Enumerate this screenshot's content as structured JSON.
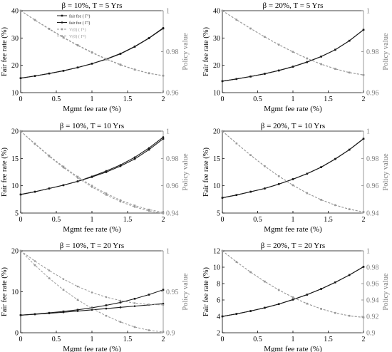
{
  "figure": {
    "common": {
      "xlabel": "Mgmt fee rate (%)",
      "ylabel_left": "Fair fee rate (%)",
      "ylabel_right": "Policy value",
      "x_ticks": [
        "0",
        "0.5",
        "1",
        "1.5",
        "2"
      ],
      "xlim": [
        0,
        2
      ]
    },
    "colors": {
      "fair_fee": "#1a1a1a",
      "policy_value": "#999999",
      "axes": "#000000",
      "right_axis_text": "#808080"
    }
  },
  "chart_data": [
    {
      "type": "line",
      "title": "β = 10%, T = 5 Yrs",
      "xlabel": "Mgmt fee rate (%)",
      "ylabel": "Fair fee rate (%)",
      "ylabel_right": "Policy value",
      "ylim": [
        10,
        40
      ],
      "ylim_right": [
        0.96,
        1.0
      ],
      "yticks": [
        "10",
        "20",
        "30",
        "40"
      ],
      "yticks_right": [
        "0.96",
        "0.98",
        "1"
      ],
      "legend": {
        "position": "top-left",
        "entries": [
          "fair fee (  Γ¹)",
          "fair fee (  Γ²)",
          "V(0) (  Γ¹)",
          "V(0) (  Γ²)"
        ]
      },
      "x": [
        0,
        0.2,
        0.4,
        0.6,
        0.8,
        1.0,
        1.2,
        1.4,
        1.6,
        1.8,
        2.0
      ],
      "series": [
        {
          "name": "fair fee (  Γ¹)",
          "axis": "left",
          "values": [
            15.3,
            16.1,
            17.0,
            18.0,
            19.2,
            20.6,
            22.2,
            24.2,
            26.8,
            29.9,
            33.5
          ]
        },
        {
          "name": "fair fee (  Γ²)",
          "axis": "left",
          "values": [
            15.3,
            16.1,
            17.0,
            18.0,
            19.2,
            20.6,
            22.3,
            24.3,
            26.9,
            30.0,
            33.7
          ]
        },
        {
          "name": "V(0) (  Γ¹)",
          "axis": "right",
          "values": [
            1.0,
            0.9955,
            0.9912,
            0.987,
            0.9832,
            0.9797,
            0.9765,
            0.9737,
            0.9713,
            0.9695,
            0.9683
          ]
        },
        {
          "name": "V(0) (  Γ²)",
          "axis": "right",
          "values": [
            1.0,
            0.9954,
            0.991,
            0.9868,
            0.983,
            0.9795,
            0.9763,
            0.9735,
            0.9712,
            0.9694,
            0.9682
          ]
        }
      ]
    },
    {
      "type": "line",
      "title": "β = 20%, T = 5 Yrs",
      "xlabel": "Mgmt fee rate (%)",
      "ylabel": "Fair fee rate (%)",
      "ylabel_right": "Policy value",
      "ylim": [
        10,
        40
      ],
      "ylim_right": [
        0.96,
        1.0
      ],
      "yticks": [
        "10",
        "20",
        "30",
        "40"
      ],
      "yticks_right": [
        "0.96",
        "0.98",
        "1"
      ],
      "x": [
        0,
        0.2,
        0.4,
        0.6,
        0.8,
        1.0,
        1.2,
        1.4,
        1.6,
        1.8,
        2.0
      ],
      "series": [
        {
          "values": [
            14.2,
            15.0,
            15.9,
            16.9,
            18.1,
            19.5,
            21.2,
            23.2,
            25.7,
            29.0,
            33.0
          ],
          "axis": "left"
        },
        {
          "values": [
            14.2,
            15.0,
            15.9,
            16.9,
            18.1,
            19.5,
            21.2,
            23.2,
            25.7,
            29.0,
            33.0
          ],
          "axis": "left"
        },
        {
          "values": [
            1.0,
            0.9956,
            0.9913,
            0.9872,
            0.9834,
            0.9799,
            0.9767,
            0.9739,
            0.9716,
            0.9698,
            0.9686
          ],
          "axis": "right"
        },
        {
          "values": [
            1.0,
            0.9956,
            0.9913,
            0.9872,
            0.9834,
            0.9799,
            0.9767,
            0.9739,
            0.9716,
            0.9698,
            0.9686
          ],
          "axis": "right"
        }
      ]
    },
    {
      "type": "line",
      "title": "β = 10%, T = 10 Yrs",
      "xlabel": "Mgmt fee rate (%)",
      "ylabel": "Fair fee rate (%)",
      "ylabel_right": "Policy value",
      "ylim": [
        5,
        20
      ],
      "ylim_right": [
        0.94,
        1.0
      ],
      "yticks": [
        "5",
        "10",
        "15",
        "20"
      ],
      "yticks_right": [
        "0.94",
        "0.96",
        "0.98",
        "1"
      ],
      "x": [
        0,
        0.2,
        0.4,
        0.6,
        0.8,
        1.0,
        1.2,
        1.4,
        1.6,
        1.8,
        2.0
      ],
      "series": [
        {
          "values": [
            8.4,
            8.9,
            9.5,
            10.1,
            10.8,
            11.6,
            12.5,
            13.6,
            14.9,
            16.6,
            18.6
          ],
          "axis": "left"
        },
        {
          "values": [
            8.4,
            8.9,
            9.5,
            10.1,
            10.8,
            11.7,
            12.7,
            13.8,
            15.2,
            16.9,
            18.9
          ],
          "axis": "left"
        },
        {
          "values": [
            1.0,
            0.9908,
            0.982,
            0.974,
            0.9666,
            0.96,
            0.9543,
            0.9494,
            0.9455,
            0.9425,
            0.9405
          ],
          "axis": "right"
        },
        {
          "values": [
            1.0,
            0.9905,
            0.9815,
            0.9733,
            0.9658,
            0.9591,
            0.9533,
            0.9484,
            0.9445,
            0.9416,
            0.9396
          ],
          "axis": "right"
        }
      ]
    },
    {
      "type": "line",
      "title": "β = 20%, T = 10 Yrs",
      "xlabel": "Mgmt fee rate (%)",
      "ylabel": "Fair fee rate (%)",
      "ylabel_right": "Policy value",
      "ylim": [
        5,
        20
      ],
      "ylim_right": [
        0.94,
        1.0
      ],
      "yticks": [
        "5",
        "10",
        "15",
        "20"
      ],
      "yticks_right": [
        "0.94",
        "0.96",
        "0.98",
        "1"
      ],
      "x": [
        0,
        0.2,
        0.4,
        0.6,
        0.8,
        1.0,
        1.2,
        1.4,
        1.6,
        1.8,
        2.0
      ],
      "series": [
        {
          "values": [
            7.8,
            8.3,
            8.9,
            9.5,
            10.3,
            11.2,
            12.2,
            13.4,
            14.9,
            16.6,
            18.6
          ],
          "axis": "left"
        },
        {
          "values": [
            7.8,
            8.3,
            8.9,
            9.5,
            10.3,
            11.2,
            12.2,
            13.4,
            14.9,
            16.6,
            18.6
          ],
          "axis": "left"
        },
        {
          "values": [
            1.0,
            0.991,
            0.9824,
            0.9743,
            0.967,
            0.9604,
            0.9546,
            0.9497,
            0.9458,
            0.9428,
            0.9408
          ],
          "axis": "right"
        },
        {
          "values": [
            1.0,
            0.991,
            0.9824,
            0.9743,
            0.967,
            0.9604,
            0.9546,
            0.9497,
            0.9458,
            0.9428,
            0.9408
          ],
          "axis": "right"
        }
      ]
    },
    {
      "type": "line",
      "title": "β = 10%, T = 20 Yrs",
      "xlabel": "Mgmt fee rate (%)",
      "ylabel": "Fair fee rate (%)",
      "ylabel_right": "Policy value",
      "ylim": [
        0,
        20
      ],
      "ylim_right": [
        0.9,
        1.0
      ],
      "yticks": [
        "0",
        "10",
        "20"
      ],
      "yticks_right": [
        "0.9",
        "0.95",
        "1"
      ],
      "x": [
        0,
        0.2,
        0.4,
        0.6,
        0.8,
        1.0,
        1.2,
        1.4,
        1.6,
        1.8,
        2.0
      ],
      "series": [
        {
          "values": [
            4.3,
            4.55,
            4.85,
            5.2,
            5.6,
            6.1,
            6.7,
            7.4,
            8.3,
            9.3,
            10.5
          ],
          "axis": "left"
        },
        {
          "values": [
            4.3,
            4.5,
            4.75,
            5.0,
            5.3,
            5.6,
            5.9,
            6.2,
            6.5,
            6.8,
            7.1
          ],
          "axis": "left"
        },
        {
          "values": [
            1.0,
            0.9825,
            0.9665,
            0.9525,
            0.9402,
            0.9297,
            0.9207,
            0.9132,
            0.907,
            0.903,
            0.901
          ],
          "axis": "right"
        },
        {
          "values": [
            1.0,
            0.9875,
            0.976,
            0.9655,
            0.9565,
            0.9492,
            0.9435,
            0.9392,
            0.9362,
            0.9345,
            0.934
          ],
          "axis": "right"
        }
      ]
    },
    {
      "type": "line",
      "title": "β = 20%, T = 20 Yrs",
      "xlabel": "Mgmt fee rate (%)",
      "ylabel": "Fair fee rate (%)",
      "ylabel_right": "Policy value",
      "ylim": [
        2,
        12
      ],
      "ylim_right": [
        0.9,
        1.0
      ],
      "yticks": [
        "2",
        "4",
        "6",
        "8",
        "10",
        "12"
      ],
      "yticks_right": [
        "0.9",
        "0.92",
        "0.94",
        "0.96",
        "0.98",
        "1"
      ],
      "x": [
        0,
        0.2,
        0.4,
        0.6,
        0.8,
        1.0,
        1.2,
        1.4,
        1.6,
        1.8,
        2.0
      ],
      "series": [
        {
          "values": [
            4.0,
            4.3,
            4.65,
            5.05,
            5.5,
            6.05,
            6.65,
            7.35,
            8.15,
            9.05,
            10.05
          ],
          "axis": "left"
        },
        {
          "values": [
            4.0,
            4.3,
            4.65,
            5.05,
            5.5,
            6.05,
            6.65,
            7.35,
            8.15,
            9.05,
            10.05
          ],
          "axis": "left"
        },
        {
          "values": [
            1.0,
            0.9865,
            0.974,
            0.9625,
            0.9522,
            0.9432,
            0.9355,
            0.9292,
            0.9242,
            0.9207,
            0.9187
          ],
          "axis": "right"
        },
        {
          "values": [
            1.0,
            0.9865,
            0.974,
            0.9625,
            0.9522,
            0.9432,
            0.9355,
            0.9292,
            0.9242,
            0.9207,
            0.9187
          ],
          "axis": "right"
        }
      ]
    }
  ]
}
